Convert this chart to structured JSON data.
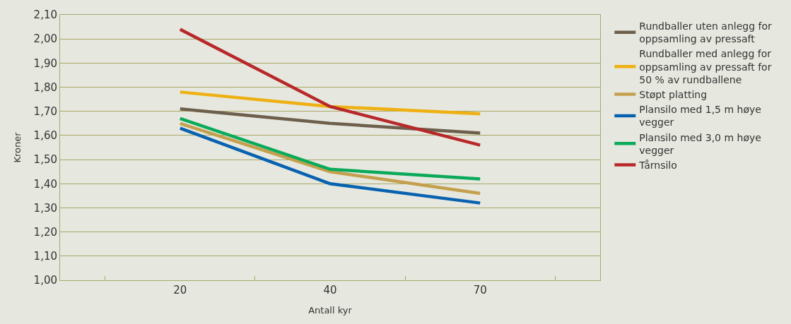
{
  "chart_data": {
    "type": "line",
    "xlabel": "Antall kyr",
    "ylabel": "Kroner",
    "categories": [
      "20",
      "40",
      "70"
    ],
    "series": [
      {
        "name": "Rundballer uten anlegg for oppsamling av pressaft",
        "color": "#6e5f4c",
        "values": [
          1.71,
          1.65,
          1.61
        ]
      },
      {
        "name": "Rundballer med anlegg for oppsamling av pressaft for 50 % av rundballene",
        "color": "#eeb012",
        "values": [
          1.78,
          1.72,
          1.69
        ]
      },
      {
        "name": "Støpt platting",
        "color": "#c4a04e",
        "values": [
          1.65,
          1.45,
          1.36
        ]
      },
      {
        "name": "Plansilo med 1,5 m høye vegger",
        "color": "#0862b0",
        "values": [
          1.63,
          1.4,
          1.32
        ]
      },
      {
        "name": "Plansilo med 3,0 m høye vegger",
        "color": "#0aaa5a",
        "values": [
          1.67,
          1.46,
          1.42
        ]
      },
      {
        "name": "Tårnsilo",
        "color": "#b8282a",
        "values": [
          2.04,
          1.72,
          1.56
        ]
      }
    ],
    "ylim": [
      1.0,
      2.1
    ],
    "yticks": [
      {
        "value": 1.0,
        "label": "1,00"
      },
      {
        "value": 1.1,
        "label": "1,10"
      },
      {
        "value": 1.2,
        "label": "1,20"
      },
      {
        "value": 1.3,
        "label": "1,30"
      },
      {
        "value": 1.4,
        "label": "1,40"
      },
      {
        "value": 1.5,
        "label": "1,50"
      },
      {
        "value": 1.6,
        "label": "1,60"
      },
      {
        "value": 1.7,
        "label": "1,70"
      },
      {
        "value": 1.8,
        "label": "1,80"
      },
      {
        "value": 1.9,
        "label": "1,90"
      },
      {
        "value": 2.0,
        "label": "2,00"
      },
      {
        "value": 2.1,
        "label": "2,10"
      }
    ],
    "grid": "y",
    "legend": "right",
    "marker": "none",
    "line_style": "solid"
  }
}
